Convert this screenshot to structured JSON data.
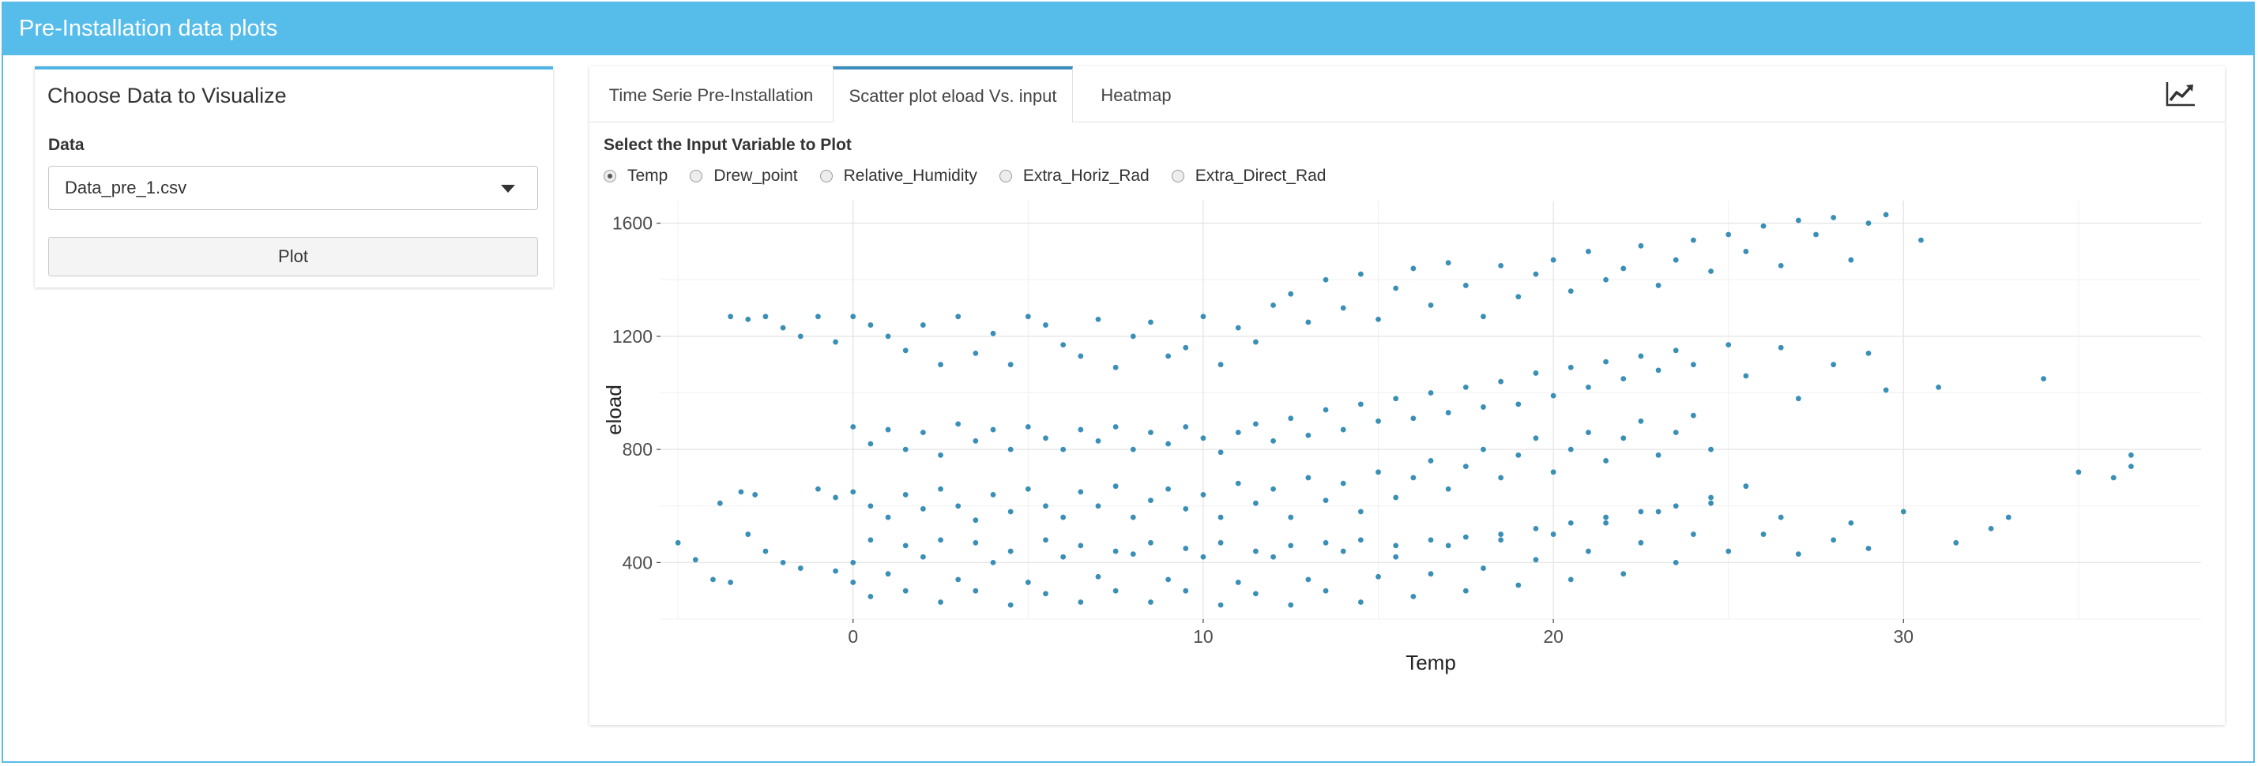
{
  "header": {
    "title": "Pre-Installation data plots"
  },
  "sidebar": {
    "title": "Choose Data to Visualize",
    "data_label": "Data",
    "selected_file": "Data_pre_1.csv",
    "plot_button": "Plot"
  },
  "tabs": [
    {
      "label": "Time Serie Pre-Installation",
      "active": false
    },
    {
      "label": "Scatter plot eload Vs. input",
      "active": true
    },
    {
      "label": "Heatmap",
      "active": false
    }
  ],
  "toolbar": {
    "icon": "line-chart-icon"
  },
  "input_selector": {
    "label": "Select the Input Variable to Plot",
    "options": [
      "Temp",
      "Drew_point",
      "Relative_Humidity",
      "Extra_Horiz_Rad",
      "Extra_Direct_Rad"
    ],
    "selected": "Temp"
  },
  "colors": {
    "header": "#56bdeb",
    "point": "#3a8fb7",
    "active_tab_border": "#3c8dbc"
  },
  "chart_data": {
    "type": "scatter",
    "xlabel": "Temp",
    "ylabel": "eload",
    "xlim": [
      -5.5,
      38.5
    ],
    "ylim": [
      200,
      1680
    ],
    "x_ticks": [
      0,
      10,
      20,
      30
    ],
    "y_ticks": [
      400,
      800,
      1200,
      1600
    ],
    "grid": true,
    "series": [
      {
        "points": [
          [
            -5.0,
            470
          ],
          [
            -4.5,
            410
          ],
          [
            -4.0,
            340
          ],
          [
            -3.5,
            330
          ],
          [
            -3.8,
            610
          ],
          [
            -3.2,
            650
          ],
          [
            -2.8,
            640
          ],
          [
            -3.0,
            500
          ],
          [
            -2.5,
            440
          ],
          [
            -2.0,
            400
          ],
          [
            -1.5,
            380
          ],
          [
            -1.0,
            660
          ],
          [
            -0.5,
            630
          ],
          [
            -3.5,
            1270
          ],
          [
            -3.0,
            1260
          ],
          [
            -2.5,
            1270
          ],
          [
            -2.0,
            1230
          ],
          [
            -1.5,
            1200
          ],
          [
            -1.0,
            1270
          ],
          [
            -0.5,
            1180
          ],
          [
            0.0,
            1270
          ],
          [
            0.5,
            1240
          ],
          [
            1.0,
            1200
          ],
          [
            1.5,
            1150
          ],
          [
            2.0,
            1240
          ],
          [
            2.5,
            1100
          ],
          [
            3.0,
            1270
          ],
          [
            3.5,
            1140
          ],
          [
            4.0,
            1210
          ],
          [
            4.5,
            1100
          ],
          [
            5.0,
            1270
          ],
          [
            5.5,
            1240
          ],
          [
            6.0,
            1170
          ],
          [
            6.5,
            1130
          ],
          [
            7.0,
            1260
          ],
          [
            7.5,
            1090
          ],
          [
            8.0,
            1200
          ],
          [
            8.5,
            1250
          ],
          [
            9.0,
            1130
          ],
          [
            9.5,
            1160
          ],
          [
            10.0,
            1270
          ],
          [
            10.5,
            1100
          ],
          [
            11.0,
            1230
          ],
          [
            11.5,
            1180
          ],
          [
            12.0,
            1310
          ],
          [
            12.5,
            1350
          ],
          [
            13.0,
            1250
          ],
          [
            13.5,
            1400
          ],
          [
            14.0,
            1300
          ],
          [
            14.5,
            1420
          ],
          [
            15.0,
            1260
          ],
          [
            15.5,
            1370
          ],
          [
            16.0,
            1440
          ],
          [
            16.5,
            1310
          ],
          [
            17.0,
            1460
          ],
          [
            17.5,
            1380
          ],
          [
            18.0,
            1270
          ],
          [
            18.5,
            1450
          ],
          [
            19.0,
            1340
          ],
          [
            19.5,
            1420
          ],
          [
            20.0,
            1470
          ],
          [
            20.5,
            1360
          ],
          [
            21.0,
            1500
          ],
          [
            21.5,
            1400
          ],
          [
            22.0,
            1440
          ],
          [
            22.5,
            1520
          ],
          [
            23.0,
            1380
          ],
          [
            23.5,
            1470
          ],
          [
            24.0,
            1540
          ],
          [
            24.5,
            1430
          ],
          [
            25.0,
            1560
          ],
          [
            25.5,
            1500
          ],
          [
            26.0,
            1590
          ],
          [
            26.5,
            1450
          ],
          [
            27.0,
            1610
          ],
          [
            27.5,
            1560
          ],
          [
            28.0,
            1620
          ],
          [
            28.5,
            1470
          ],
          [
            29.0,
            1600
          ],
          [
            29.5,
            1630
          ],
          [
            30.5,
            1540
          ],
          [
            0.0,
            880
          ],
          [
            0.5,
            820
          ],
          [
            1.0,
            870
          ],
          [
            1.5,
            800
          ],
          [
            2.0,
            860
          ],
          [
            2.5,
            780
          ],
          [
            3.0,
            890
          ],
          [
            3.5,
            830
          ],
          [
            4.0,
            870
          ],
          [
            4.5,
            800
          ],
          [
            5.0,
            880
          ],
          [
            5.5,
            840
          ],
          [
            6.0,
            800
          ],
          [
            6.5,
            870
          ],
          [
            7.0,
            830
          ],
          [
            7.5,
            880
          ],
          [
            8.0,
            800
          ],
          [
            8.5,
            860
          ],
          [
            9.0,
            820
          ],
          [
            9.5,
            880
          ],
          [
            10.0,
            840
          ],
          [
            10.5,
            790
          ],
          [
            11.0,
            860
          ],
          [
            11.5,
            890
          ],
          [
            12.0,
            830
          ],
          [
            12.5,
            910
          ],
          [
            13.0,
            850
          ],
          [
            13.5,
            940
          ],
          [
            14.0,
            870
          ],
          [
            14.5,
            960
          ],
          [
            15.0,
            900
          ],
          [
            15.5,
            980
          ],
          [
            16.0,
            910
          ],
          [
            16.5,
            1000
          ],
          [
            17.0,
            930
          ],
          [
            17.5,
            1020
          ],
          [
            18.0,
            950
          ],
          [
            18.5,
            1040
          ],
          [
            19.0,
            960
          ],
          [
            19.5,
            1070
          ],
          [
            20.0,
            990
          ],
          [
            20.5,
            1090
          ],
          [
            21.0,
            1020
          ],
          [
            21.5,
            1110
          ],
          [
            22.0,
            1050
          ],
          [
            22.5,
            1130
          ],
          [
            23.0,
            1080
          ],
          [
            23.5,
            1150
          ],
          [
            24.0,
            1100
          ],
          [
            25.0,
            1170
          ],
          [
            25.5,
            1060
          ],
          [
            26.5,
            1160
          ],
          [
            27.0,
            980
          ],
          [
            28.0,
            1100
          ],
          [
            29.0,
            1140
          ],
          [
            29.5,
            1010
          ],
          [
            31.0,
            1020
          ],
          [
            34.0,
            1050
          ],
          [
            0.0,
            650
          ],
          [
            0.5,
            600
          ],
          [
            1.0,
            560
          ],
          [
            1.5,
            640
          ],
          [
            2.0,
            590
          ],
          [
            2.5,
            660
          ],
          [
            3.0,
            600
          ],
          [
            3.5,
            550
          ],
          [
            4.0,
            640
          ],
          [
            4.5,
            580
          ],
          [
            5.0,
            660
          ],
          [
            5.5,
            600
          ],
          [
            6.0,
            560
          ],
          [
            6.5,
            650
          ],
          [
            7.0,
            600
          ],
          [
            7.5,
            670
          ],
          [
            8.0,
            560
          ],
          [
            8.5,
            620
          ],
          [
            9.0,
            660
          ],
          [
            9.5,
            590
          ],
          [
            10.0,
            640
          ],
          [
            10.5,
            560
          ],
          [
            11.0,
            680
          ],
          [
            11.5,
            610
          ],
          [
            12.0,
            660
          ],
          [
            12.5,
            560
          ],
          [
            13.0,
            700
          ],
          [
            13.5,
            620
          ],
          [
            14.0,
            680
          ],
          [
            14.5,
            580
          ],
          [
            15.0,
            720
          ],
          [
            15.5,
            630
          ],
          [
            16.0,
            700
          ],
          [
            16.5,
            760
          ],
          [
            17.0,
            660
          ],
          [
            17.5,
            740
          ],
          [
            18.0,
            800
          ],
          [
            18.5,
            700
          ],
          [
            19.0,
            780
          ],
          [
            19.5,
            840
          ],
          [
            20.0,
            720
          ],
          [
            20.5,
            800
          ],
          [
            21.0,
            860
          ],
          [
            21.5,
            760
          ],
          [
            22.0,
            840
          ],
          [
            22.5,
            900
          ],
          [
            23.0,
            780
          ],
          [
            23.5,
            860
          ],
          [
            24.0,
            920
          ],
          [
            24.5,
            800
          ],
          [
            0.0,
            400
          ],
          [
            0.0,
            330
          ],
          [
            0.5,
            280
          ],
          [
            1.0,
            360
          ],
          [
            1.5,
            300
          ],
          [
            2.0,
            420
          ],
          [
            2.5,
            260
          ],
          [
            3.0,
            340
          ],
          [
            3.5,
            300
          ],
          [
            4.0,
            400
          ],
          [
            4.5,
            250
          ],
          [
            5.0,
            330
          ],
          [
            5.5,
            290
          ],
          [
            6.0,
            420
          ],
          [
            6.5,
            260
          ],
          [
            7.0,
            350
          ],
          [
            7.5,
            300
          ],
          [
            8.0,
            430
          ],
          [
            8.5,
            260
          ],
          [
            9.0,
            340
          ],
          [
            9.5,
            300
          ],
          [
            10.0,
            420
          ],
          [
            10.5,
            250
          ],
          [
            11.0,
            330
          ],
          [
            11.5,
            290
          ],
          [
            12.0,
            420
          ],
          [
            12.5,
            250
          ],
          [
            13.0,
            340
          ],
          [
            13.5,
            300
          ],
          [
            14.0,
            440
          ],
          [
            14.5,
            260
          ],
          [
            15.0,
            350
          ],
          [
            15.5,
            420
          ],
          [
            16.0,
            280
          ],
          [
            16.5,
            360
          ],
          [
            17.0,
            460
          ],
          [
            17.5,
            300
          ],
          [
            18.0,
            380
          ],
          [
            18.5,
            480
          ],
          [
            19.0,
            320
          ],
          [
            19.5,
            410
          ],
          [
            20.0,
            500
          ],
          [
            20.5,
            340
          ],
          [
            21.0,
            440
          ],
          [
            21.5,
            540
          ],
          [
            22.0,
            360
          ],
          [
            22.5,
            470
          ],
          [
            23.0,
            580
          ],
          [
            23.5,
            400
          ],
          [
            24.0,
            500
          ],
          [
            24.5,
            610
          ],
          [
            25.0,
            440
          ],
          [
            25.5,
            670
          ],
          [
            26.0,
            500
          ],
          [
            26.5,
            560
          ],
          [
            27.0,
            430
          ],
          [
            28.0,
            480
          ],
          [
            28.5,
            540
          ],
          [
            29.0,
            450
          ],
          [
            30.0,
            580
          ],
          [
            31.5,
            470
          ],
          [
            32.5,
            520
          ],
          [
            33.0,
            560
          ],
          [
            35.0,
            720
          ],
          [
            36.0,
            700
          ],
          [
            36.5,
            740
          ],
          [
            36.5,
            780
          ],
          [
            -0.5,
            370
          ],
          [
            0.5,
            480
          ],
          [
            1.5,
            460
          ],
          [
            2.5,
            480
          ],
          [
            3.5,
            470
          ],
          [
            4.5,
            440
          ],
          [
            5.5,
            480
          ],
          [
            6.5,
            460
          ],
          [
            7.5,
            440
          ],
          [
            8.5,
            470
          ],
          [
            9.5,
            450
          ],
          [
            10.5,
            470
          ],
          [
            11.5,
            440
          ],
          [
            12.5,
            460
          ],
          [
            13.5,
            470
          ],
          [
            14.5,
            480
          ],
          [
            15.5,
            460
          ],
          [
            16.5,
            480
          ],
          [
            17.5,
            490
          ],
          [
            18.5,
            500
          ],
          [
            19.5,
            520
          ],
          [
            20.5,
            540
          ],
          [
            21.5,
            560
          ],
          [
            22.5,
            580
          ],
          [
            23.5,
            600
          ],
          [
            24.5,
            630
          ]
        ]
      }
    ]
  }
}
